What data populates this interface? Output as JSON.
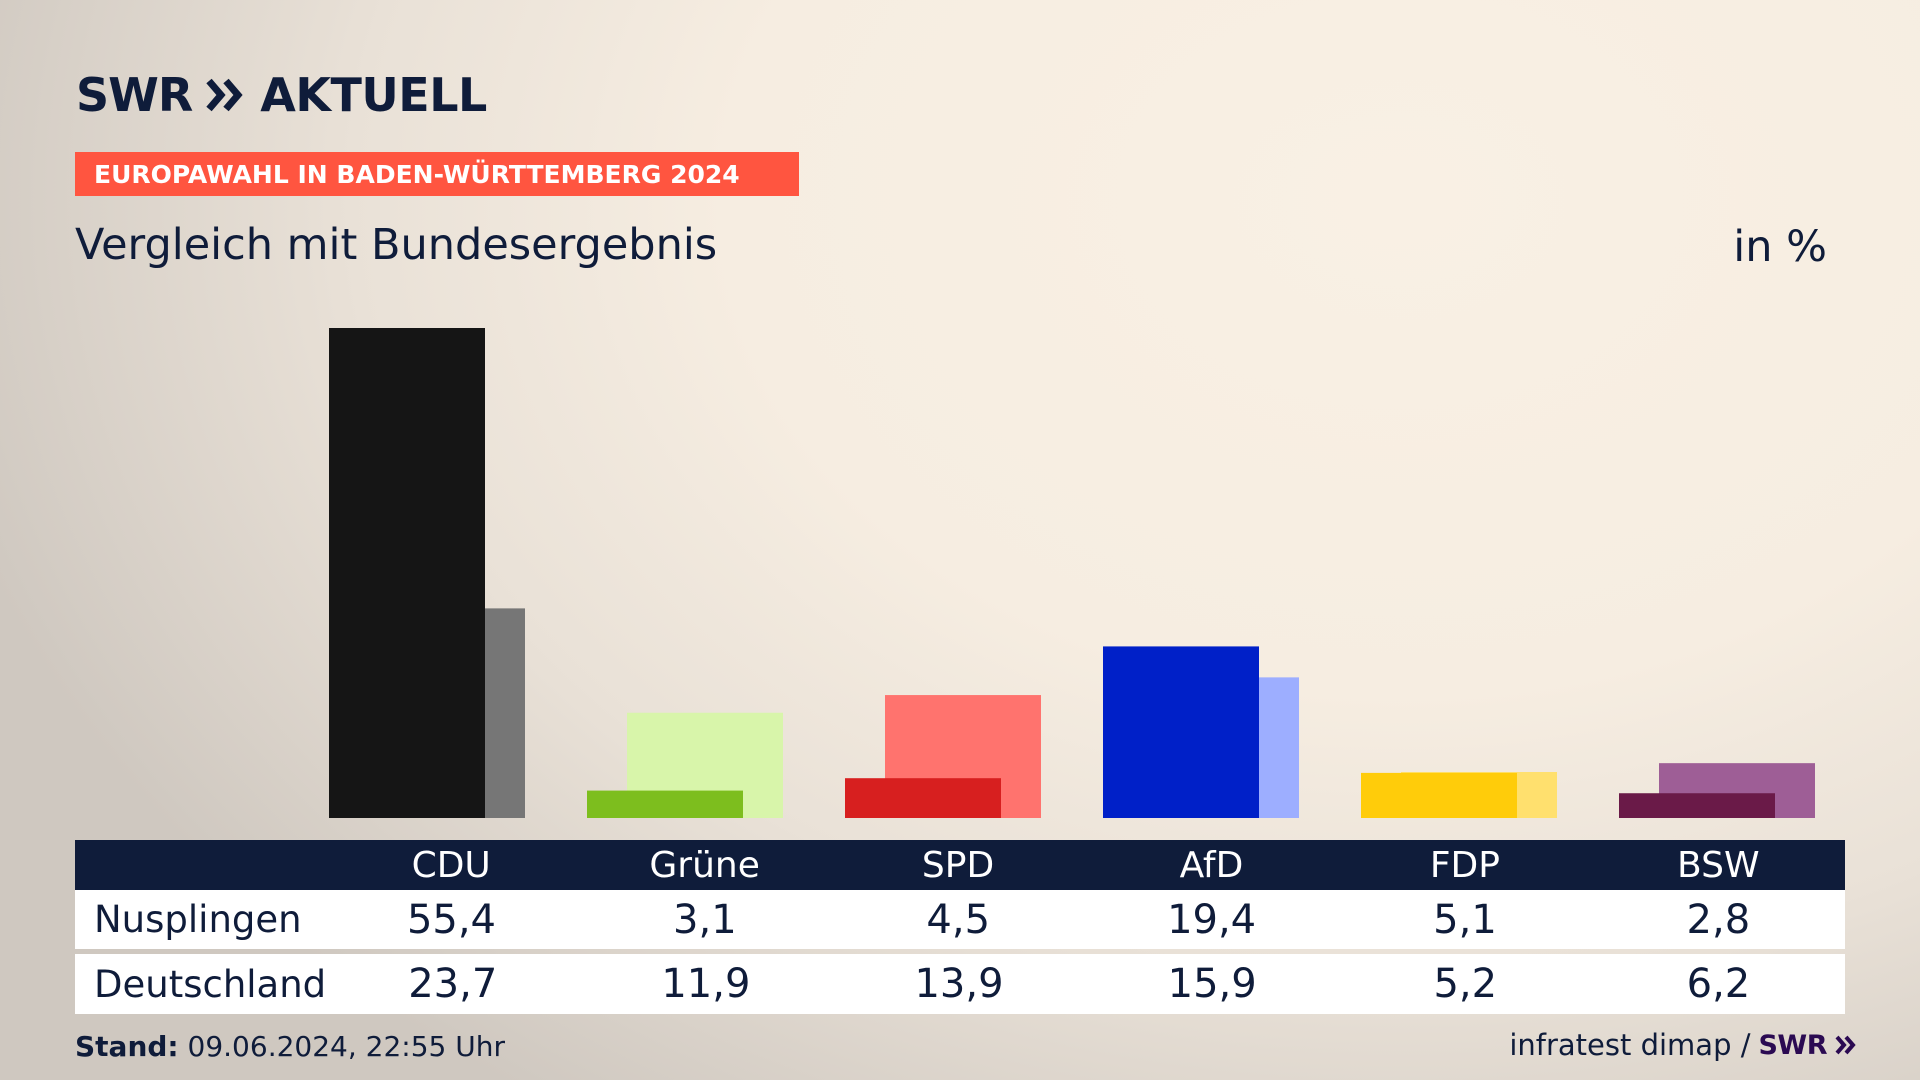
{
  "header": {
    "logo_left": "SWR",
    "logo_right": "AKTUELL",
    "badge": "EUROPAWAHL IN BADEN-WÜRTTEMBERG 2024",
    "subtitle": "Vergleich mit Bundesergebnis",
    "unit": "in %"
  },
  "chart_data": {
    "type": "bar",
    "categories": [
      "CDU",
      "Grüne",
      "SPD",
      "AfD",
      "FDP",
      "BSW"
    ],
    "series": [
      {
        "name": "Nusplingen",
        "values": [
          55.4,
          3.1,
          4.5,
          19.4,
          5.1,
          2.8
        ]
      },
      {
        "name": "Deutschland",
        "values": [
          23.7,
          11.9,
          13.9,
          15.9,
          5.2,
          6.2
        ]
      }
    ],
    "ylim": [
      0,
      55.4
    ],
    "colors": {
      "Nusplingen": [
        "#151515",
        "#7dbe1e",
        "#d71f1f",
        "#0020c8",
        "#ffcc0a",
        "#6a1a48"
      ],
      "Deutschland": [
        "#767676",
        "#d8f5aa",
        "#ff736e",
        "#9daeff",
        "#ffe06e",
        "#9e5e96"
      ]
    }
  },
  "table": {
    "rows": [
      {
        "label": "Nusplingen",
        "values": [
          "55,4",
          "3,1",
          "4,5",
          "19,4",
          "5,1",
          "2,8"
        ]
      },
      {
        "label": "Deutschland",
        "values": [
          "23,7",
          "11,9",
          "13,9",
          "15,9",
          "5,2",
          "6,2"
        ]
      }
    ]
  },
  "footer": {
    "stand_label": "Stand:",
    "stand_value": "09.06.2024, 22:55 Uhr",
    "source": "infratest dimap /",
    "brand": "SWR"
  }
}
